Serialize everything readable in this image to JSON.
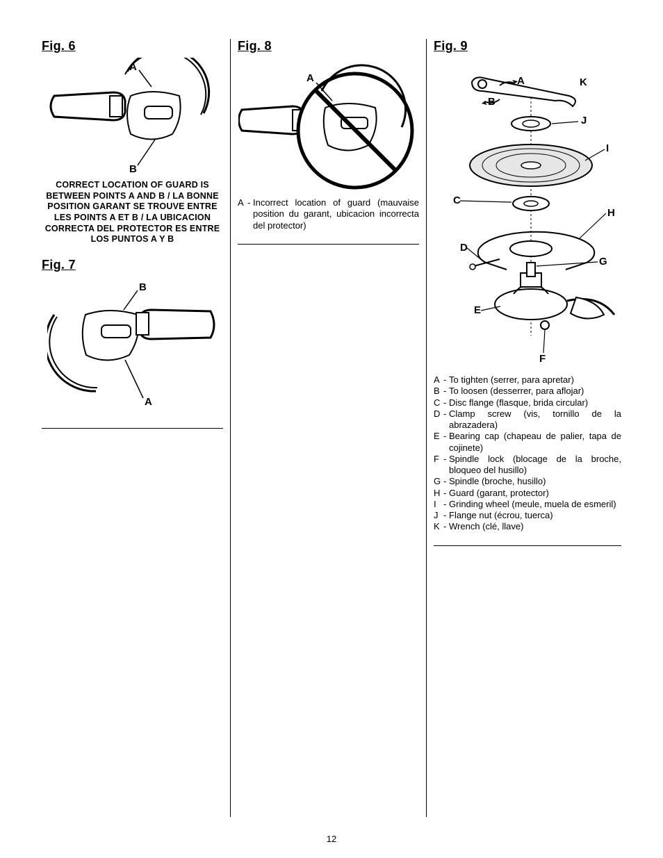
{
  "page_number": "12",
  "colors": {
    "text": "#000000",
    "bg": "#ffffff",
    "line": "#000000"
  },
  "fig6": {
    "title": "Fig. 6",
    "labels": {
      "A": "A",
      "B": "B"
    },
    "caption": "CORRECT LOCATION OF GUARD IS BETWEEN POINTS A AND B / LA BONNE POSITION GARANT SE TROUVE ENTRE LES POINTS A ET B / LA UBICACION CORRECTA DEL PROTECTOR ES ENTRE LOS PUNTOS A Y B"
  },
  "fig7": {
    "title": "Fig. 7",
    "labels": {
      "A": "A",
      "B": "B"
    }
  },
  "fig8": {
    "title": "Fig. 8",
    "labels": {
      "A": "A"
    },
    "legend": [
      {
        "k": "A",
        "v": "Incorrect location of guard (mauvaise position du garant, ubicacion incorrecta del protector)"
      }
    ]
  },
  "fig9": {
    "title": "Fig. 9",
    "labels": {
      "A": "A",
      "B": "B",
      "C": "C",
      "D": "D",
      "E": "E",
      "F": "F",
      "G": "G",
      "H": "H",
      "I": "I",
      "J": "J",
      "K": "K"
    },
    "legend": [
      {
        "k": "A",
        "v": "To tighten (serrer, para apretar)"
      },
      {
        "k": "B",
        "v": "To loosen (desserrer, para aflojar)"
      },
      {
        "k": "C",
        "v": "Disc flange (flasque, brida circular)"
      },
      {
        "k": "D",
        "v": "Clamp screw (vis, tornillo de la abrazadera)"
      },
      {
        "k": "E",
        "v": "Bearing cap (chapeau de palier, tapa de cojinete)"
      },
      {
        "k": "F",
        "v": "Spindle lock (blocage de la broche, bloqueo del husillo)"
      },
      {
        "k": "G",
        "v": "Spindle (broche, husillo)"
      },
      {
        "k": "H",
        "v": "Guard (garant, protector)"
      },
      {
        "k": "I",
        "v": "Grinding wheel (meule, muela de esmeril)"
      },
      {
        "k": "J",
        "v": "Flange nut (écrou, tuerca)"
      },
      {
        "k": "K",
        "v": "Wrench (clé, llave)"
      }
    ]
  }
}
